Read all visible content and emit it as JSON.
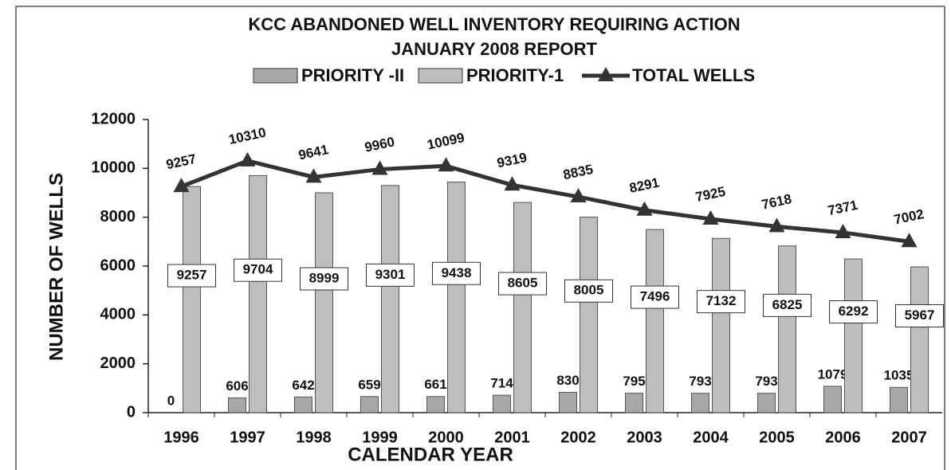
{
  "chart_data": {
    "type": "bar",
    "title": "KCC ABANDONED WELL INVENTORY REQUIRING ACTION",
    "subtitle": "JANUARY 2008 REPORT",
    "x_label": "CALENDAR YEAR",
    "y_label": "NUMBER OF WELLS",
    "categories": [
      "1996",
      "1997",
      "1998",
      "1999",
      "2000",
      "2001",
      "2002",
      "2003",
      "2004",
      "2005",
      "2006",
      "2007"
    ],
    "series": [
      {
        "name": "PRIORITY -II",
        "color": "#a8a8a8",
        "values": [
          0,
          606,
          642,
          659,
          661,
          714,
          830,
          795,
          793,
          793,
          1079,
          1035
        ]
      },
      {
        "name": "PRIORITY-1",
        "color": "#bdbdbd",
        "values": [
          9257,
          9704,
          8999,
          9301,
          9438,
          8605,
          8005,
          7496,
          7132,
          6825,
          6292,
          5967
        ]
      },
      {
        "name": "TOTAL WELLS",
        "type": "line",
        "color": "#333333",
        "values": [
          9257,
          10310,
          9641,
          9960,
          10099,
          9319,
          8835,
          8291,
          7925,
          7618,
          7371,
          7002
        ]
      }
    ],
    "ylim": [
      0,
      12000
    ],
    "yticks": [
      0,
      2000,
      4000,
      6000,
      8000,
      10000,
      12000
    ],
    "grid": false
  }
}
